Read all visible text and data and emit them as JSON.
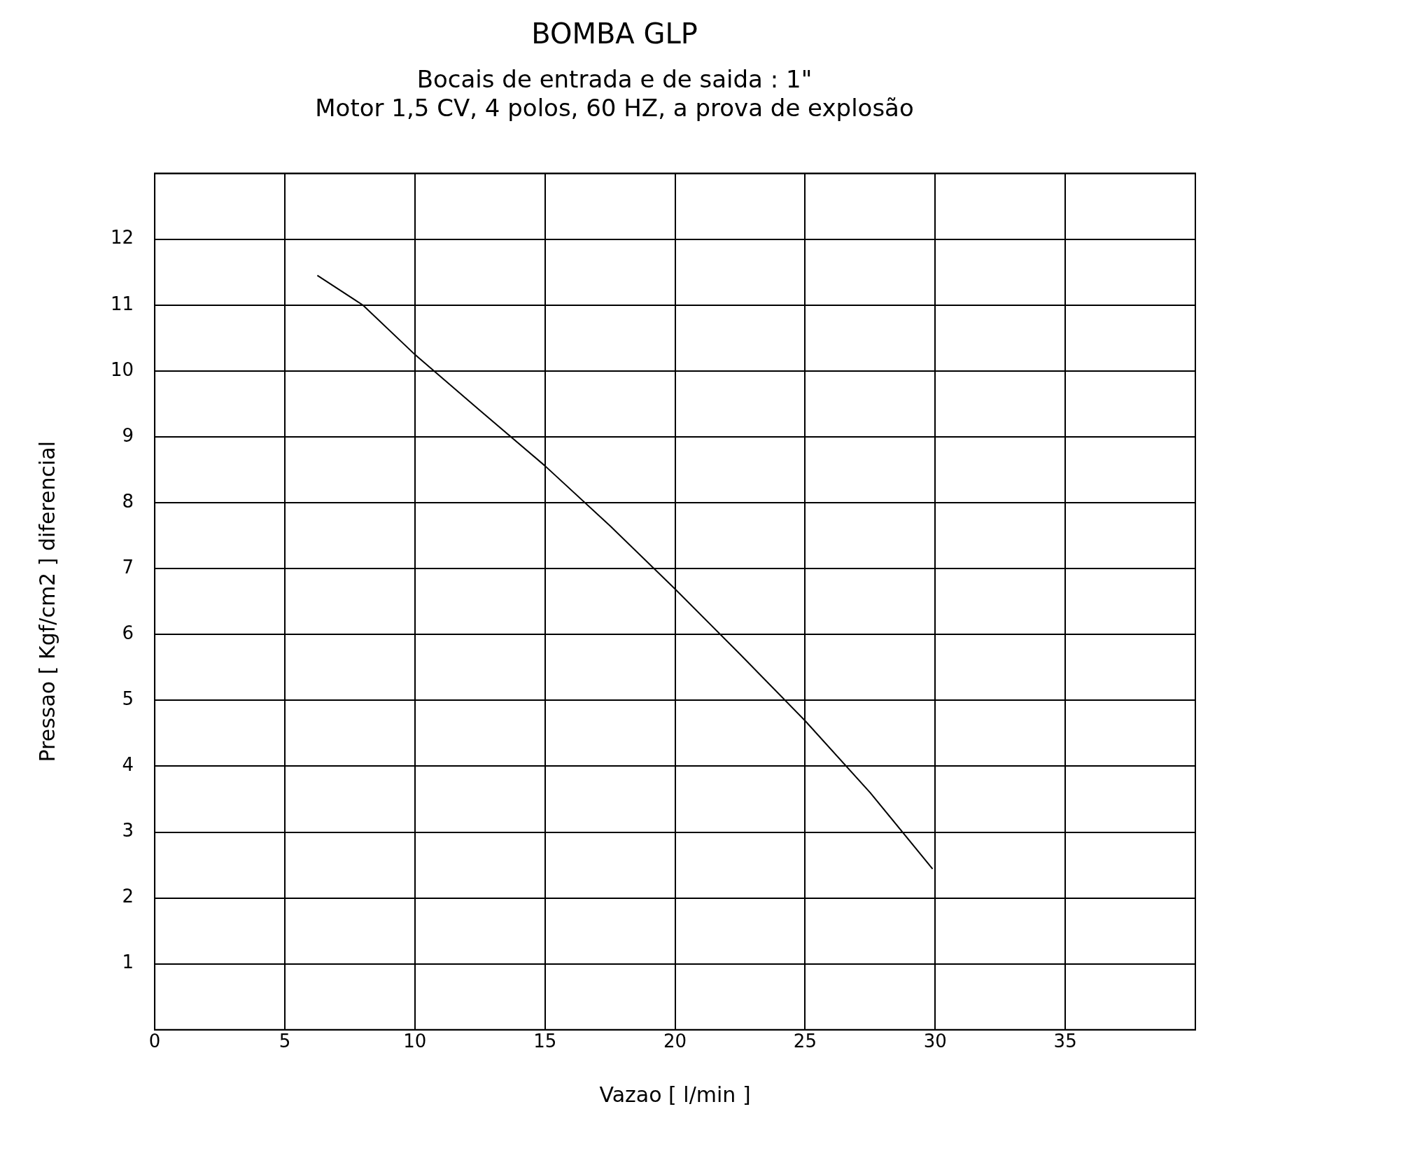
{
  "chart_data": {
    "type": "line",
    "title": "BOMBA GLP",
    "subtitle": [
      "Bocais de entrada e de saida : 1\"",
      "Motor 1,5 CV, 4 polos, 60 HZ, a prova de explosão"
    ],
    "xlabel": "Vazao [ l/min ]",
    "ylabel": "Pressao [ Kgf/cm2 ] diferencial",
    "x": [
      6.25,
      8,
      10,
      12.5,
      15,
      17.5,
      20,
      22.5,
      25,
      27.5,
      29.9
    ],
    "series": [
      {
        "color": "#000000",
        "values": [
          11.45,
          11.0,
          10.25,
          9.4,
          8.56,
          7.65,
          6.69,
          5.7,
          4.69,
          3.6,
          2.44
        ]
      }
    ],
    "xlim": [
      0,
      40
    ],
    "ylim": [
      0,
      13
    ],
    "xticks": [
      0,
      5,
      10,
      15,
      20,
      25,
      30,
      35,
      {
        "value": 40,
        "label": null
      }
    ],
    "yticks": [
      {
        "value": 0,
        "label": null
      },
      1,
      2,
      3,
      4,
      5,
      6,
      7,
      8,
      9,
      10,
      11,
      12,
      {
        "value": 13,
        "label": null
      }
    ],
    "grid": true,
    "legend": false,
    "marker": "none",
    "line_style": "solid"
  }
}
